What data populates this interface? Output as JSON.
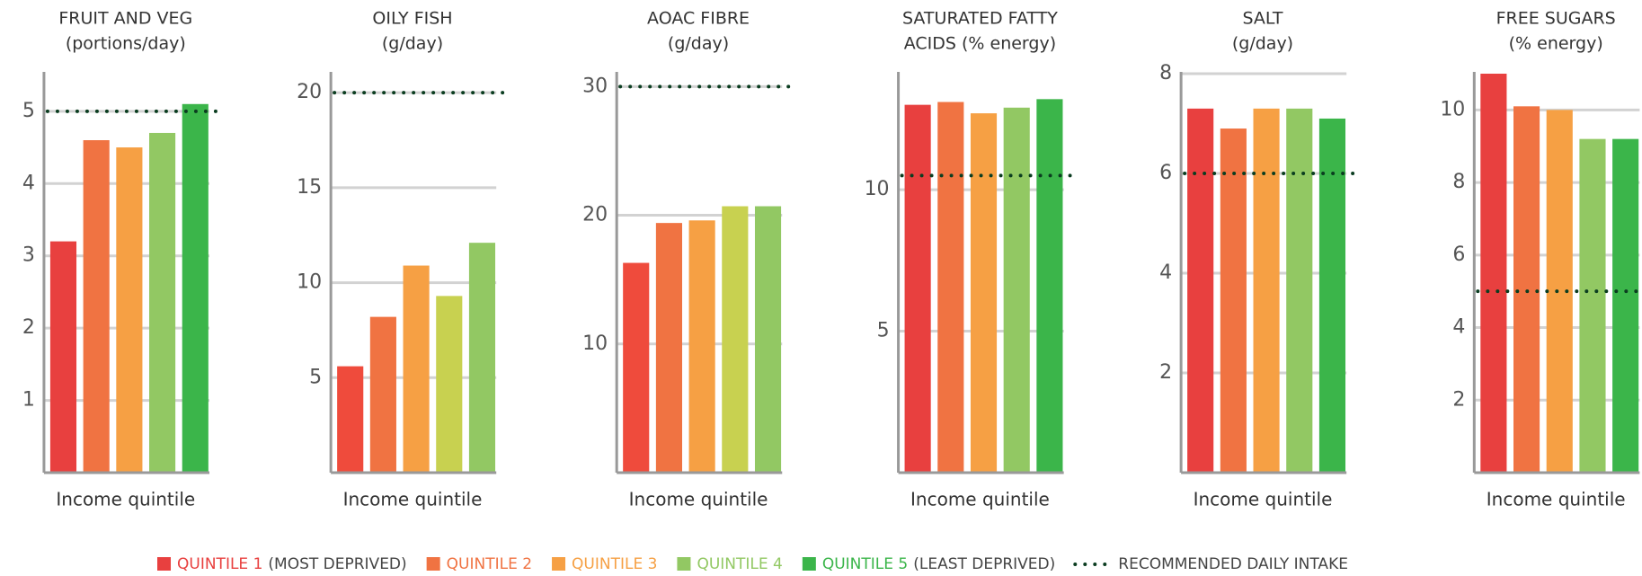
{
  "chart_data": [
    {
      "type": "bar",
      "title": [
        "FRUIT AND VEG",
        "(portions/day)"
      ],
      "xlabel": "Income quintile",
      "values": [
        3.2,
        4.6,
        4.5,
        4.7,
        5.1
      ],
      "colors": [
        "#e8403f",
        "#f07342",
        "#f6a044",
        "#92c863",
        "#3bb54a"
      ],
      "reference": 5,
      "ylim": [
        0,
        5.52
      ],
      "yticks": [
        1,
        2,
        3,
        4,
        5
      ],
      "grid": true
    },
    {
      "type": "bar",
      "title": [
        "OILY FISH",
        "(g/day)"
      ],
      "xlabel": "Income quintile",
      "values": [
        5.6,
        8.2,
        10.9,
        9.3,
        12.1
      ],
      "colors": [
        "#ef4b3c",
        "#f07342",
        "#f6a044",
        "#c8d150",
        "#92c863"
      ],
      "reference": 20,
      "ylim": [
        0,
        21
      ],
      "yticks": [
        5,
        10,
        15,
        20
      ],
      "grid": true
    },
    {
      "type": "bar",
      "title": [
        "AOAC FIBRE",
        "(g/day)"
      ],
      "xlabel": "Income quintile",
      "values": [
        16.3,
        19.4,
        19.6,
        20.7,
        20.7
      ],
      "colors": [
        "#ef4b3c",
        "#f07342",
        "#f6a044",
        "#c8d150",
        "#92c863"
      ],
      "reference": 30,
      "ylim": [
        0,
        31
      ],
      "yticks": [
        10,
        20,
        30
      ],
      "grid": true
    },
    {
      "type": "bar",
      "title": [
        "SATURATED FATTY",
        "ACIDS (% energy)"
      ],
      "xlabel": "Income quintile",
      "values": [
        13.0,
        13.1,
        12.7,
        12.9,
        13.2
      ],
      "colors": [
        "#e8403f",
        "#f07342",
        "#f6a044",
        "#92c863",
        "#3bb54a"
      ],
      "reference": 10.5,
      "ylim": [
        0,
        14.1
      ],
      "yticks": [
        5,
        10
      ],
      "grid": true
    },
    {
      "type": "bar",
      "title": [
        "SALT",
        "(g/day)"
      ],
      "xlabel": "Income quintile",
      "values": [
        7.3,
        6.9,
        7.3,
        7.3,
        7.1
      ],
      "colors": [
        "#e8403f",
        "#f07342",
        "#f6a044",
        "#92c863",
        "#3bb54a"
      ],
      "reference": 6,
      "ylim": [
        0,
        8
      ],
      "yticks": [
        2,
        4,
        6,
        8
      ],
      "grid": true
    },
    {
      "type": "bar",
      "title": [
        "FREE SUGARS",
        "(% energy)"
      ],
      "xlabel": "Income quintile",
      "values": [
        11.0,
        10.1,
        10.0,
        9.2,
        9.2
      ],
      "colors": [
        "#e8403f",
        "#f07342",
        "#f6a044",
        "#92c863",
        "#3bb54a"
      ],
      "reference": 5,
      "ylim": [
        0,
        11
      ],
      "yticks": [
        2,
        4,
        6,
        8,
        10
      ],
      "grid": true
    }
  ],
  "legend": {
    "items": [
      {
        "name": "QUINTILE 1",
        "note": "(MOST DEPRIVED)",
        "color": "#e8403f"
      },
      {
        "name": "QUINTILE 2",
        "color": "#f07342"
      },
      {
        "name": "QUINTILE 3",
        "color": "#f6a044"
      },
      {
        "name": "QUINTILE 4",
        "color": "#92c863"
      },
      {
        "name": "QUINTILE 5",
        "note": "(LEAST DEPRIVED)",
        "color": "#3bb54a"
      }
    ],
    "reference_label": "RECOMMENDED DAILY INTAKE",
    "reference_color": "#0b3d20"
  }
}
